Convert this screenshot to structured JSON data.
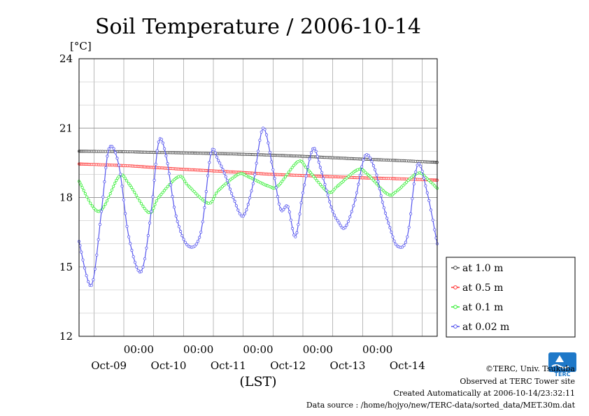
{
  "chart_data": {
    "type": "line",
    "title": "Soil Temperature / 2006-10-14",
    "ylabel": "[°C]",
    "xlabel": "(LST)",
    "ylim": [
      12,
      24
    ],
    "yticks": [
      12,
      15,
      18,
      21,
      24
    ],
    "xlim": [
      -18,
      126
    ],
    "x_unit": "hours since 2006-10-09 00:00 LST",
    "x_time_labels": [
      "00:00",
      "00:00",
      "00:00",
      "00:00",
      "00:00"
    ],
    "x_time_label_pos": [
      6,
      30,
      54,
      78,
      102
    ],
    "x_date_labels": [
      "Oct-09",
      "Oct-10",
      "Oct-11",
      "Oct-12",
      "Oct-13",
      "Oct-14"
    ],
    "x_date_label_pos": [
      -6,
      18,
      42,
      66,
      90,
      114
    ],
    "grid": true,
    "legend_position": "right",
    "series": [
      {
        "name": "at 1.0 m",
        "color": "#444444",
        "x": [
          -18,
          0,
          12,
          24,
          36,
          48,
          60,
          72,
          84,
          96,
          108,
          126
        ],
        "y": [
          20.0,
          19.98,
          19.95,
          19.93,
          19.9,
          19.87,
          19.83,
          19.78,
          19.72,
          19.66,
          19.61,
          19.52
        ]
      },
      {
        "name": "at 0.5 m",
        "color": "#ff3333",
        "x": [
          -18,
          0,
          12,
          24,
          36,
          48,
          60,
          72,
          84,
          96,
          108,
          126
        ],
        "y": [
          19.45,
          19.38,
          19.3,
          19.22,
          19.15,
          19.08,
          19.0,
          18.95,
          18.9,
          18.85,
          18.82,
          18.75
        ]
      },
      {
        "name": "at 0.1 m",
        "color": "#33ee33",
        "x": [
          -18,
          -10,
          -2,
          2,
          10,
          14,
          22,
          26,
          34,
          38,
          46,
          50,
          58,
          62,
          70,
          74,
          82,
          86,
          94,
          98,
          106,
          110,
          118,
          122,
          126
        ],
        "y": [
          18.7,
          17.4,
          18.9,
          18.6,
          17.35,
          18.0,
          18.9,
          18.5,
          17.75,
          18.3,
          19.0,
          18.9,
          18.5,
          18.5,
          19.55,
          19.2,
          18.25,
          18.5,
          19.2,
          19.0,
          18.15,
          18.3,
          19.05,
          18.8,
          18.4
        ]
      },
      {
        "name": "at 0.02 m",
        "color": "#5555ee",
        "x": [
          -18,
          -13,
          -9,
          -6,
          -2,
          2,
          7,
          11,
          14,
          17,
          21,
          26,
          31,
          35,
          38,
          41,
          44,
          48,
          52,
          56,
          60,
          63,
          66,
          69,
          72,
          76,
          79,
          82,
          84,
          86,
          89,
          93,
          97,
          101,
          104,
          107,
          110,
          114,
          118,
          122,
          126
        ],
        "y": [
          16.1,
          14.2,
          17.4,
          20.1,
          19.4,
          16.3,
          14.8,
          17.4,
          20.4,
          19.8,
          17.2,
          15.9,
          16.5,
          19.9,
          19.6,
          18.9,
          18.0,
          17.2,
          18.6,
          21.0,
          19.2,
          17.5,
          17.6,
          16.3,
          18.2,
          20.1,
          19.3,
          18.1,
          17.4,
          17.0,
          16.7,
          17.9,
          19.8,
          19.2,
          17.8,
          16.7,
          15.9,
          16.3,
          19.4,
          18.2,
          16.0
        ]
      }
    ]
  },
  "footer": {
    "copyright": "©TERC, Univ. Tsukuba",
    "site": "Observed at TERC Tower site",
    "created": "Created Automatically at 2006-10-14/23:32:11",
    "source": "Data source : /home/hojyo/new/TERC-data/sorted_data/MET.30m.dat"
  },
  "logo": {
    "text": "TERC",
    "color": "#1e78c8"
  }
}
